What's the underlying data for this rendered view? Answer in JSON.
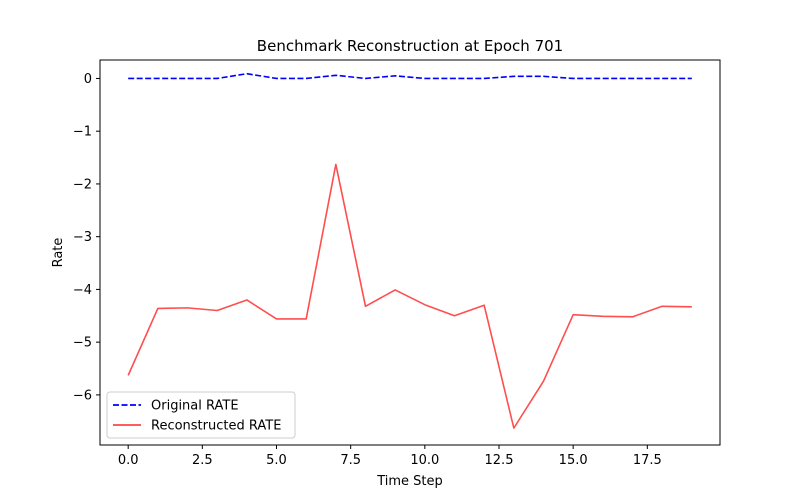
{
  "chart_data": {
    "type": "line",
    "title": "Benchmark Reconstruction at Epoch 701",
    "xlabel": "Time Step",
    "ylabel": "Rate",
    "x": [
      0,
      1,
      2,
      3,
      4,
      5,
      6,
      7,
      8,
      9,
      10,
      11,
      12,
      13,
      14,
      15,
      16,
      17,
      18,
      19
    ],
    "xlim": [
      -0.95,
      19.95
    ],
    "ylim": [
      -6.95,
      0.35
    ],
    "xticks": [
      0.0,
      2.5,
      5.0,
      7.5,
      10.0,
      12.5,
      15.0,
      17.5
    ],
    "xtick_labels": [
      "0.0",
      "2.5",
      "5.0",
      "7.5",
      "10.0",
      "12.5",
      "15.0",
      "17.5"
    ],
    "yticks": [
      0,
      -1,
      -2,
      -3,
      -4,
      -5,
      -6
    ],
    "ytick_labels": [
      "0",
      "−1",
      "−2",
      "−3",
      "−4",
      "−5",
      "−6"
    ],
    "grid": false,
    "legend_position": "bottom-left",
    "series": [
      {
        "name": "Original RATE",
        "color": "#0000ff",
        "style": "dashed",
        "values": [
          0.0,
          0.0,
          0.0,
          0.0,
          0.09,
          0.0,
          0.0,
          0.06,
          0.0,
          0.05,
          0.0,
          0.0,
          0.0,
          0.04,
          0.04,
          0.0,
          0.0,
          0.0,
          0.0,
          0.0
        ]
      },
      {
        "name": "Reconstructed RATE",
        "color": "#ff4444",
        "style": "solid",
        "values": [
          -5.63,
          -4.36,
          -4.35,
          -4.4,
          -4.2,
          -4.56,
          -4.56,
          -1.63,
          -4.32,
          -4.01,
          -4.29,
          -4.5,
          -4.3,
          -6.63,
          -5.74,
          -4.48,
          -4.51,
          -4.52,
          -4.32,
          -4.33
        ]
      }
    ]
  }
}
